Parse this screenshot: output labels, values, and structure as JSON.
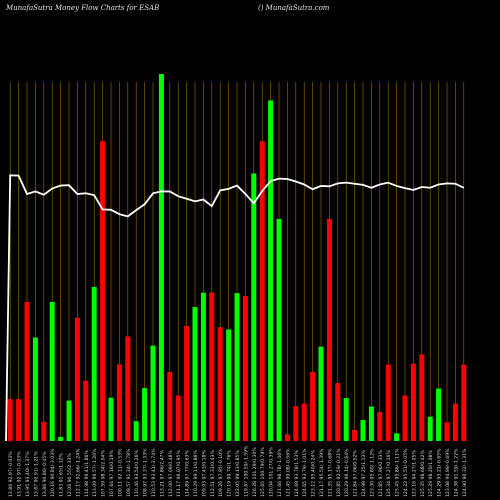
{
  "header": {
    "title": "MunafaSutra  Money Flow  Charts for ESAB",
    "site": "() MunafaSutra.com"
  },
  "colors": {
    "background": "#000000",
    "up": "#00ff00",
    "down": "#ff0000",
    "line": "#ffffff",
    "grid": "#b8860b"
  },
  "chart_data": {
    "type": "bar",
    "title": "MunafaSutra  Money Flow  Charts for ESAB",
    "xlabel": "",
    "ylabel": "",
    "ylim": [
      0,
      100
    ],
    "grid": "vertical",
    "categories": [
      "13.86 92.97/-0.03%",
      "13.91 92.97/-0.03%",
      "13.95 93.40/-1.37%",
      "13.87 90.91/-1.21%",
      "13.86 90.86/-0.45%",
      "120.16 90.84/-3.03%",
      "11.83 91.65/1.12%",
      "12.06 90.55/2.33%",
      "112.17 92.66/-1.24%",
      "114.98 99.41/1.86%",
      "113.09 99.57/-1.26%",
      "107.59 98.34/2.04%",
      "107.64 97.16/0.19%",
      "100.11 92.11/-0.53%",
      "109.57 91.34/-1.78%",
      "110.46 93.54/0.26%",
      "108.97 93.37/-1.33%",
      "110.53 93.41/-2.74%",
      "113.21 97.86/2.47%",
      "112.00 97.09/0.48%",
      "111.17 96.07/0.95%",
      "114.89 97.77/0.63%",
      "110.29 99.11/0.88%",
      "109.93 97.43/0.18%",
      "112.51 97.33/0.43%",
      "109.26 97.95/-0.10%",
      "120.19 99.74/1.76%",
      "122.05 99.13/0.85%",
      "119.87 100.59/-1.59%",
      "126.28 101.29/0.30%",
      "125.65 100.79/0.79%",
      "120.04 101.27/0.39%",
      "121.66 98.78/-1.46%",
      "121.45 99.08/-0.56%",
      "124.69 93.78/1.53%",
      "124.65 93.79/-1.01%",
      "123.12 95.40/0.24%",
      "121.17 95.54/-1.39%",
      "121.35 95.17/-0.68%",
      "120.85 92.59/-0.21%",
      "120.29 96.14/-0.64%",
      "121.84 97.06/0.52%",
      "124.98 97.25/1.13%",
      "123.30 95.80/-1.12%",
      "121.85 97.96/0.33%",
      "125.34 97.27/0.16%",
      "125.45 95.86/-1.11%",
      "124.22 95.51/-0.05%",
      "123.16 94.27/1.05%",
      "125.35 98.68/0.42%",
      "125.29 98.20/1.08%",
      "124.29 93.22/-0.65%",
      "123.08 94.99/-0.69%",
      "124.38 91.59/-1.22%",
      "124.90 90.32/-1.31%"
    ],
    "series": [
      {
        "type": "bar",
        "colors": [
          "down",
          "down",
          "down",
          "up",
          "down",
          "up",
          "up",
          "up",
          "down",
          "down",
          "up",
          "down",
          "up",
          "down",
          "down",
          "up",
          "up",
          "up",
          "up",
          "down",
          "down",
          "down",
          "up",
          "up",
          "down",
          "down",
          "up",
          "up",
          "down",
          "up",
          "down",
          "up",
          "up",
          "down",
          "down",
          "down",
          "down",
          "up",
          "down",
          "down",
          "up",
          "down",
          "up",
          "up",
          "down",
          "down",
          "up",
          "down",
          "down",
          "down",
          "up",
          "up",
          "down",
          "down",
          "down"
        ],
        "values": [
          11.4,
          11.4,
          37.9,
          28.2,
          5.2,
          37.9,
          1.1,
          11.0,
          33.6,
          16.4,
          42.0,
          81.7,
          11.8,
          20.9,
          28.5,
          5.4,
          14.4,
          26.0,
          100.0,
          18.8,
          12.4,
          31.3,
          36.5,
          40.4,
          40.5,
          31.0,
          30.4,
          40.3,
          39.5,
          72.9,
          81.7,
          92.8,
          60.5,
          1.8,
          9.5,
          10.2,
          18.8,
          25.7,
          60.5,
          15.8,
          11.7,
          3.0,
          5.7,
          9.4,
          7.9,
          20.8,
          2.1,
          12.4,
          21.1,
          23.6,
          6.6,
          14.3,
          5.1,
          10.2,
          20.8
        ]
      },
      {
        "type": "line",
        "values": [
          72.4,
          72.3,
          67.3,
          68.0,
          67.1,
          68.8,
          69.6,
          69.7,
          67.3,
          67.5,
          67.0,
          63.1,
          63.0,
          61.8,
          61.2,
          62.9,
          64.5,
          67.5,
          68.0,
          68.0,
          66.7,
          66.0,
          65.3,
          65.8,
          64.0,
          68.3,
          68.7,
          69.6,
          67.3,
          64.8,
          68.1,
          70.8,
          71.5,
          71.4,
          70.7,
          69.9,
          68.6,
          69.5,
          69.4,
          70.2,
          70.4,
          70.1,
          69.8,
          69.0,
          69.9,
          70.4,
          69.5,
          68.9,
          68.4,
          69.2,
          69.0,
          69.9,
          70.2,
          70.1,
          69.0
        ]
      }
    ]
  }
}
